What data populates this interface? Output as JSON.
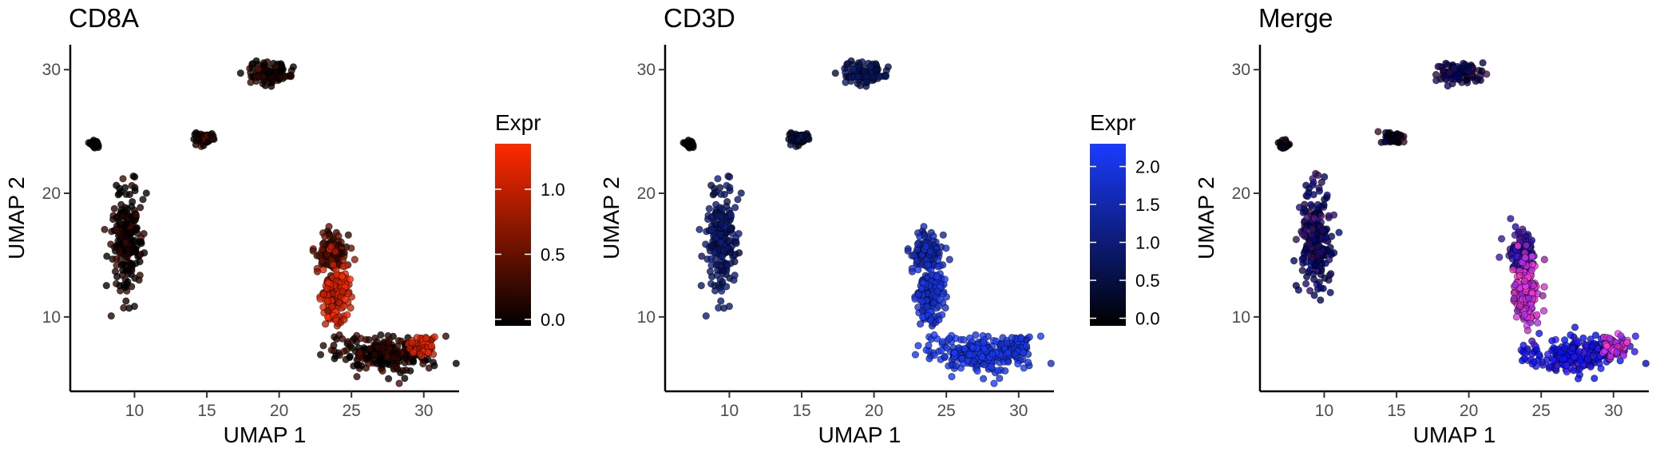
{
  "chart_data": [
    {
      "type": "scatter",
      "title": "CD8A",
      "xlabel": "UMAP 1",
      "ylabel": "UMAP 2",
      "xlim": [
        6,
        32
      ],
      "ylim": [
        4.5,
        31.5
      ],
      "xticks": [
        10,
        15,
        20,
        25,
        30
      ],
      "yticks": [
        10,
        20,
        30
      ],
      "grid": false,
      "legend": {
        "title": "Expr",
        "position": "right",
        "range": [
          -0.05,
          1.35
        ],
        "ticks": [
          0.0,
          0.5,
          1.0
        ],
        "tick_labels": [
          "0.0",
          "0.5",
          "1.0"
        ],
        "colors": [
          "#000000",
          "#ff2a00"
        ]
      },
      "clusters": [
        {
          "x": 7.2,
          "y": 24.0,
          "sx": 0.15,
          "sy": 0.15,
          "level": 0.0
        },
        {
          "x": 14.7,
          "y": 24.4,
          "sx": 0.35,
          "sy": 0.22,
          "level": 0.0
        },
        {
          "x": 19.3,
          "y": 29.7,
          "sx": 0.8,
          "sy": 0.45,
          "level": 0.05
        },
        {
          "x": 9.5,
          "y": 16.5,
          "sx": 0.55,
          "sy": 2.0,
          "level": 0.05
        },
        {
          "x": 23.6,
          "y": 15.2,
          "sx": 0.5,
          "sy": 0.9,
          "level": 0.35
        },
        {
          "x": 23.9,
          "y": 12.0,
          "sx": 0.45,
          "sy": 1.3,
          "level": 1.1
        },
        {
          "x": 27.2,
          "y": 7.0,
          "sx": 1.8,
          "sy": 0.7,
          "level": 0.1
        },
        {
          "x": 30.0,
          "y": 7.6,
          "sx": 0.4,
          "sy": 0.4,
          "level": 1.1
        }
      ]
    },
    {
      "type": "scatter",
      "title": "CD3D",
      "xlabel": "UMAP 1",
      "ylabel": "UMAP 2",
      "xlim": [
        6,
        32
      ],
      "ylim": [
        4.5,
        31.5
      ],
      "xticks": [
        10,
        15,
        20,
        25,
        30
      ],
      "yticks": [
        10,
        20,
        30
      ],
      "grid": false,
      "legend": {
        "title": "Expr",
        "position": "right",
        "range": [
          -0.1,
          2.3
        ],
        "ticks": [
          0.0,
          0.5,
          1.0,
          1.5,
          2.0
        ],
        "tick_labels": [
          "0.0",
          "0.5",
          "1.0",
          "1.5",
          "2.0"
        ],
        "colors": [
          "#000000",
          "#1a3cff"
        ]
      },
      "clusters": [
        {
          "x": 7.2,
          "y": 24.0,
          "sx": 0.15,
          "sy": 0.15,
          "level": 0.0
        },
        {
          "x": 14.7,
          "y": 24.4,
          "sx": 0.35,
          "sy": 0.22,
          "level": 0.3
        },
        {
          "x": 19.3,
          "y": 29.7,
          "sx": 0.8,
          "sy": 0.45,
          "level": 0.7
        },
        {
          "x": 9.5,
          "y": 16.5,
          "sx": 0.55,
          "sy": 2.0,
          "level": 0.9
        },
        {
          "x": 23.6,
          "y": 15.2,
          "sx": 0.5,
          "sy": 0.9,
          "level": 1.5
        },
        {
          "x": 23.9,
          "y": 12.0,
          "sx": 0.45,
          "sy": 1.3,
          "level": 1.9
        },
        {
          "x": 27.2,
          "y": 7.0,
          "sx": 1.8,
          "sy": 0.7,
          "level": 2.1
        },
        {
          "x": 30.0,
          "y": 7.6,
          "sx": 0.4,
          "sy": 0.4,
          "level": 2.0
        }
      ]
    },
    {
      "type": "scatter",
      "title": "Merge",
      "xlabel": "UMAP 1",
      "ylabel": "UMAP 2",
      "xlim": [
        6,
        32
      ],
      "ylim": [
        4.5,
        31.5
      ],
      "xticks": [
        10,
        15,
        20,
        25,
        30
      ],
      "yticks": [
        10,
        20,
        30
      ],
      "grid": false,
      "clusters": [
        {
          "x": 7.2,
          "y": 24.0,
          "sx": 0.15,
          "sy": 0.15,
          "red": 0.0,
          "blue": 0.0
        },
        {
          "x": 14.7,
          "y": 24.4,
          "sx": 0.35,
          "sy": 0.22,
          "red": 0.0,
          "blue": 0.3
        },
        {
          "x": 19.3,
          "y": 29.7,
          "sx": 0.8,
          "sy": 0.45,
          "red": 0.05,
          "blue": 0.7
        },
        {
          "x": 9.5,
          "y": 16.5,
          "sx": 0.55,
          "sy": 2.0,
          "red": 0.05,
          "blue": 0.9
        },
        {
          "x": 23.6,
          "y": 15.2,
          "sx": 0.5,
          "sy": 0.9,
          "red": 0.35,
          "blue": 1.5
        },
        {
          "x": 23.9,
          "y": 12.0,
          "sx": 0.45,
          "sy": 1.3,
          "red": 1.1,
          "blue": 1.9
        },
        {
          "x": 27.2,
          "y": 7.0,
          "sx": 1.8,
          "sy": 0.7,
          "red": 0.1,
          "blue": 2.1
        },
        {
          "x": 30.0,
          "y": 7.6,
          "sx": 0.4,
          "sy": 0.4,
          "red": 1.1,
          "blue": 2.0
        }
      ]
    }
  ]
}
